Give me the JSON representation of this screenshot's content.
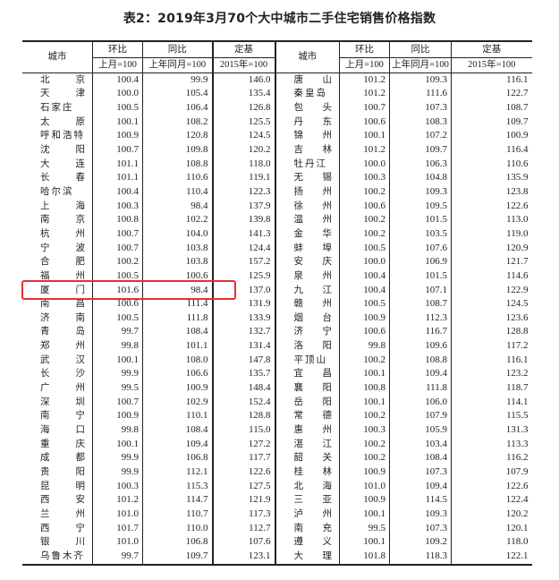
{
  "title": "表2：2019年3月70个大中城市二手住宅销售价格指数",
  "headers": {
    "city": "城市",
    "mom": "环比",
    "yoy": "同比",
    "base": "定基",
    "mom_sub": "上月=100",
    "yoy_sub": "上年同月=100",
    "base_sub": "2015年=100"
  },
  "highlight": {
    "city": "厦门",
    "color": "#e53030"
  },
  "rows": [
    [
      [
        "北京",
        "100.4",
        "99.9",
        "146.0"
      ],
      [
        "唐山",
        "101.2",
        "109.3",
        "116.1"
      ]
    ],
    [
      [
        "天津",
        "100.0",
        "105.4",
        "135.4"
      ],
      [
        "秦皇岛",
        "101.2",
        "111.6",
        "122.7"
      ]
    ],
    [
      [
        "石家庄",
        "100.5",
        "106.4",
        "126.8"
      ],
      [
        "包头",
        "100.7",
        "107.3",
        "108.7"
      ]
    ],
    [
      [
        "太原",
        "100.1",
        "108.2",
        "125.5"
      ],
      [
        "丹东",
        "100.6",
        "108.3",
        "109.7"
      ]
    ],
    [
      [
        "呼和浩特",
        "100.9",
        "120.8",
        "124.5"
      ],
      [
        "锦州",
        "100.1",
        "107.2",
        "100.9"
      ]
    ],
    [
      [
        "沈阳",
        "100.7",
        "109.8",
        "120.2"
      ],
      [
        "吉林",
        "101.2",
        "109.7",
        "116.4"
      ]
    ],
    [
      [
        "大连",
        "101.1",
        "108.8",
        "118.0"
      ],
      [
        "牡丹江",
        "100.0",
        "106.3",
        "110.6"
      ]
    ],
    [
      [
        "长春",
        "101.1",
        "110.6",
        "119.1"
      ],
      [
        "无锡",
        "100.3",
        "104.8",
        "135.9"
      ]
    ],
    [
      [
        "哈尔滨",
        "100.4",
        "110.4",
        "122.3"
      ],
      [
        "扬州",
        "100.2",
        "109.3",
        "123.8"
      ]
    ],
    [
      [
        "上海",
        "100.3",
        "98.4",
        "137.9"
      ],
      [
        "徐州",
        "100.6",
        "109.5",
        "122.6"
      ]
    ],
    [
      [
        "南京",
        "100.8",
        "102.2",
        "139.8"
      ],
      [
        "温州",
        "100.2",
        "101.5",
        "113.0"
      ]
    ],
    [
      [
        "杭州",
        "100.7",
        "104.0",
        "141.3"
      ],
      [
        "金华",
        "100.2",
        "103.5",
        "119.0"
      ]
    ],
    [
      [
        "宁波",
        "100.7",
        "103.8",
        "124.4"
      ],
      [
        "蚌埠",
        "100.5",
        "107.6",
        "120.9"
      ]
    ],
    [
      [
        "合肥",
        "100.2",
        "103.8",
        "157.2"
      ],
      [
        "安庆",
        "100.0",
        "106.9",
        "121.7"
      ]
    ],
    [
      [
        "福州",
        "100.5",
        "100.6",
        "125.9"
      ],
      [
        "泉州",
        "100.4",
        "101.5",
        "114.6"
      ]
    ],
    [
      [
        "厦门",
        "101.6",
        "98.4",
        "137.0"
      ],
      [
        "九江",
        "100.4",
        "107.1",
        "122.9"
      ]
    ],
    [
      [
        "南昌",
        "100.6",
        "111.4",
        "131.9"
      ],
      [
        "赣州",
        "100.5",
        "108.7",
        "124.5"
      ]
    ],
    [
      [
        "济南",
        "100.5",
        "111.8",
        "133.9"
      ],
      [
        "烟台",
        "100.9",
        "112.3",
        "123.6"
      ]
    ],
    [
      [
        "青岛",
        "99.7",
        "108.4",
        "132.7"
      ],
      [
        "济宁",
        "100.6",
        "116.7",
        "128.8"
      ]
    ],
    [
      [
        "郑州",
        "99.8",
        "101.1",
        "131.4"
      ],
      [
        "洛阳",
        "99.8",
        "109.6",
        "117.2"
      ]
    ],
    [
      [
        "武汉",
        "100.1",
        "108.0",
        "147.8"
      ],
      [
        "平顶山",
        "100.2",
        "108.8",
        "116.1"
      ]
    ],
    [
      [
        "长沙",
        "99.9",
        "106.6",
        "135.7"
      ],
      [
        "宜昌",
        "100.1",
        "109.4",
        "123.2"
      ]
    ],
    [
      [
        "广州",
        "99.5",
        "100.9",
        "148.4"
      ],
      [
        "襄阳",
        "100.8",
        "111.8",
        "118.7"
      ]
    ],
    [
      [
        "深圳",
        "100.7",
        "102.9",
        "152.4"
      ],
      [
        "岳阳",
        "100.1",
        "106.0",
        "114.1"
      ]
    ],
    [
      [
        "南宁",
        "100.9",
        "110.1",
        "128.8"
      ],
      [
        "常德",
        "100.2",
        "107.9",
        "115.5"
      ]
    ],
    [
      [
        "海口",
        "99.8",
        "108.4",
        "115.0"
      ],
      [
        "惠州",
        "100.3",
        "105.9",
        "131.3"
      ]
    ],
    [
      [
        "重庆",
        "100.1",
        "109.4",
        "127.2"
      ],
      [
        "湛江",
        "100.2",
        "103.4",
        "113.3"
      ]
    ],
    [
      [
        "成都",
        "99.9",
        "106.8",
        "117.7"
      ],
      [
        "韶关",
        "100.2",
        "108.4",
        "116.2"
      ]
    ],
    [
      [
        "贵阳",
        "99.9",
        "112.1",
        "122.6"
      ],
      [
        "桂林",
        "100.9",
        "107.3",
        "107.9"
      ]
    ],
    [
      [
        "昆明",
        "100.3",
        "115.3",
        "127.5"
      ],
      [
        "北海",
        "101.0",
        "109.4",
        "122.6"
      ]
    ],
    [
      [
        "西安",
        "101.2",
        "114.7",
        "121.9"
      ],
      [
        "三亚",
        "100.9",
        "114.5",
        "122.4"
      ]
    ],
    [
      [
        "兰州",
        "101.0",
        "110.7",
        "117.3"
      ],
      [
        "泸州",
        "100.1",
        "109.3",
        "120.2"
      ]
    ],
    [
      [
        "西宁",
        "101.7",
        "110.0",
        "112.7"
      ],
      [
        "南充",
        "99.5",
        "107.3",
        "120.1"
      ]
    ],
    [
      [
        "银川",
        "101.0",
        "106.8",
        "107.6"
      ],
      [
        "遵义",
        "100.1",
        "109.2",
        "118.0"
      ]
    ],
    [
      [
        "乌鲁木齐",
        "99.7",
        "109.7",
        "123.1"
      ],
      [
        "大理",
        "101.8",
        "118.3",
        "122.1"
      ]
    ]
  ]
}
